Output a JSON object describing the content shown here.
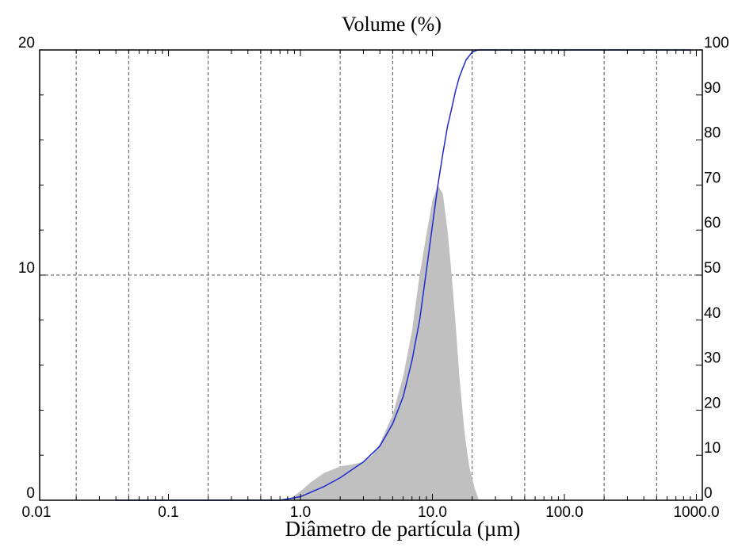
{
  "chart_data": {
    "type": "area",
    "title": "Volume (%)",
    "xlabel": "Diâmetro de partícula (µm)",
    "xscale": "log",
    "xlim": [
      0.01,
      2000
    ],
    "ylim_left": [
      0,
      20
    ],
    "ylim_right": [
      0,
      100
    ],
    "x_ticklabels": [
      {
        "value": 0.01,
        "label": "0.01"
      },
      {
        "value": 0.1,
        "label": "0.1"
      },
      {
        "value": 1,
        "label": "1.0"
      },
      {
        "value": 10,
        "label": "10.0"
      },
      {
        "value": 100,
        "label": "100.0"
      },
      {
        "value": 1000,
        "label": "1000.0"
      }
    ],
    "y_left_ticklabels": [
      {
        "value": 0,
        "label": "0"
      },
      {
        "value": 10,
        "label": "10"
      },
      {
        "value": 20,
        "label": "20"
      }
    ],
    "y_right_ticklabels": [
      {
        "value": 0,
        "label": "0"
      },
      {
        "value": 10,
        "label": "10"
      },
      {
        "value": 20,
        "label": "20"
      },
      {
        "value": 30,
        "label": "30"
      },
      {
        "value": 40,
        "label": "40"
      },
      {
        "value": 50,
        "label": "50"
      },
      {
        "value": 60,
        "label": "60"
      },
      {
        "value": 70,
        "label": "70"
      },
      {
        "value": 80,
        "label": "80"
      },
      {
        "value": 90,
        "label": "90"
      },
      {
        "value": 100,
        "label": "100"
      }
    ],
    "grid": true,
    "series": [
      {
        "kind": "area",
        "axis": "left",
        "color": "#c0c0c0",
        "points": [
          [
            0.8,
            0
          ],
          [
            1.0,
            0.4
          ],
          [
            1.2,
            0.8
          ],
          [
            1.5,
            1.2
          ],
          [
            2.0,
            1.5
          ],
          [
            2.5,
            1.6
          ],
          [
            3.0,
            1.7
          ],
          [
            3.5,
            2.0
          ],
          [
            4.0,
            2.5
          ],
          [
            5.0,
            3.8
          ],
          [
            6.0,
            5.5
          ],
          [
            7.0,
            7.5
          ],
          [
            8.0,
            10.0
          ],
          [
            9.0,
            11.8
          ],
          [
            10.0,
            13.3
          ],
          [
            11.0,
            14.0
          ],
          [
            12.0,
            13.6
          ],
          [
            13.0,
            12.0
          ],
          [
            14.0,
            10.0
          ],
          [
            15.0,
            7.8
          ],
          [
            16.0,
            5.5
          ],
          [
            17.5,
            3.0
          ],
          [
            19.0,
            1.5
          ],
          [
            21.0,
            0.5
          ],
          [
            22.5,
            0
          ]
        ]
      },
      {
        "kind": "line",
        "axis": "right",
        "color": "#1c2ad2",
        "points": [
          [
            0.04,
            0
          ],
          [
            0.7,
            0
          ],
          [
            1.0,
            0.8
          ],
          [
            1.5,
            3
          ],
          [
            2.0,
            5
          ],
          [
            3.0,
            8.5
          ],
          [
            4.0,
            12
          ],
          [
            5.0,
            17
          ],
          [
            6.0,
            23
          ],
          [
            7.0,
            31
          ],
          [
            8.0,
            40
          ],
          [
            9.0,
            51
          ],
          [
            10.0,
            61
          ],
          [
            11.0,
            70
          ],
          [
            12.0,
            77
          ],
          [
            13.0,
            83
          ],
          [
            14.0,
            87
          ],
          [
            15.0,
            91
          ],
          [
            16.0,
            94
          ],
          [
            17.0,
            96
          ],
          [
            18.0,
            97.8
          ],
          [
            20.0,
            99.5
          ],
          [
            22.0,
            100
          ],
          [
            900,
            100
          ]
        ]
      }
    ]
  }
}
